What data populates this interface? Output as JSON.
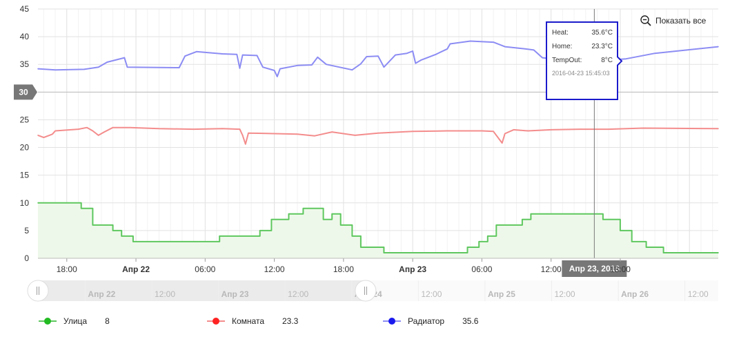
{
  "reset_button": {
    "label": "Показать все",
    "icon": "zoom-out-icon"
  },
  "chart_data": {
    "type": "line",
    "title": "",
    "xlabel": "",
    "ylabel": "",
    "ylim": [
      0,
      45
    ],
    "yticks": [
      0,
      5,
      10,
      15,
      20,
      25,
      30,
      35,
      40,
      45
    ],
    "xlim": [
      "2016-04-21 15:30",
      "2016-04-24 02:30"
    ],
    "xticks": [
      {
        "t": "2016-04-21 18:00",
        "label": "18:00",
        "bold": false
      },
      {
        "t": "2016-04-22 00:00",
        "label": "Апр 22",
        "bold": true
      },
      {
        "t": "2016-04-22 06:00",
        "label": "06:00",
        "bold": false
      },
      {
        "t": "2016-04-22 12:00",
        "label": "12:00",
        "bold": false
      },
      {
        "t": "2016-04-22 18:00",
        "label": "18:00",
        "bold": false
      },
      {
        "t": "2016-04-23 00:00",
        "label": "Апр 23",
        "bold": true
      },
      {
        "t": "2016-04-23 06:00",
        "label": "06:00",
        "bold": false
      },
      {
        "t": "2016-04-23 12:00",
        "label": "12:00",
        "bold": false
      },
      {
        "t": "2016-04-23 18:00",
        "label": "18:00",
        "bold": false
      }
    ],
    "grid": true,
    "legend_position": "bottom",
    "crosshair": {
      "x": "2016-04-23 15:45",
      "x_label": "Апр 23, 2016",
      "y": 30,
      "y_label": "30"
    },
    "tooltip": {
      "rows": [
        {
          "label": "Heat:",
          "value": "35.6°C"
        },
        {
          "label": "Home:",
          "value": "23.3°C"
        },
        {
          "label": "TempOut:",
          "value": "8°C"
        }
      ],
      "date": "2016-04-23 15:45:03",
      "border_color": "#1a1acc"
    },
    "series": [
      {
        "name": "Улица",
        "legend_value": "8",
        "color": "#5ec75e",
        "legend_color": "#22bb22",
        "fill": "#eef8ea",
        "step": true,
        "points": [
          [
            "2016-04-21 15:30",
            10
          ],
          [
            "2016-04-21 19:15",
            9
          ],
          [
            "2016-04-21 20:15",
            6
          ],
          [
            "2016-04-21 22:00",
            5
          ],
          [
            "2016-04-21 22:45",
            4
          ],
          [
            "2016-04-21 23:45",
            3
          ],
          [
            "2016-04-22 07:15",
            4
          ],
          [
            "2016-04-22 10:45",
            5
          ],
          [
            "2016-04-22 11:45",
            7
          ],
          [
            "2016-04-22 13:15",
            8
          ],
          [
            "2016-04-22 14:30",
            9
          ],
          [
            "2016-04-22 16:15",
            7
          ],
          [
            "2016-04-22 17:00",
            8
          ],
          [
            "2016-04-22 17:45",
            6
          ],
          [
            "2016-04-22 18:45",
            4
          ],
          [
            "2016-04-22 19:30",
            2
          ],
          [
            "2016-04-22 21:30",
            1
          ],
          [
            "2016-04-23 04:45",
            2
          ],
          [
            "2016-04-23 05:45",
            3
          ],
          [
            "2016-04-23 06:30",
            4
          ],
          [
            "2016-04-23 07:15",
            6
          ],
          [
            "2016-04-23 09:30",
            7
          ],
          [
            "2016-04-23 10:15",
            8
          ],
          [
            "2016-04-23 16:30",
            7
          ],
          [
            "2016-04-23 18:00",
            5
          ],
          [
            "2016-04-23 19:00",
            3
          ],
          [
            "2016-04-23 20:15",
            2
          ],
          [
            "2016-04-23 21:45",
            1
          ],
          [
            "2016-04-24 02:30",
            1
          ]
        ]
      },
      {
        "name": "Комната",
        "legend_value": "23.3",
        "color": "#f48c8c",
        "legend_color": "#ff2222",
        "step": false,
        "points": [
          [
            "2016-04-21 15:30",
            22.2
          ],
          [
            "2016-04-21 16:00",
            21.8
          ],
          [
            "2016-04-21 16:45",
            22.4
          ],
          [
            "2016-04-21 17:00",
            23.0
          ],
          [
            "2016-04-21 19:00",
            23.3
          ],
          [
            "2016-04-21 19:45",
            23.6
          ],
          [
            "2016-04-21 20:15",
            23.0
          ],
          [
            "2016-04-21 20:45",
            22.2
          ],
          [
            "2016-04-21 21:15",
            22.8
          ],
          [
            "2016-04-21 22:00",
            23.6
          ],
          [
            "2016-04-21 23:30",
            23.6
          ],
          [
            "2016-04-22 02:00",
            23.4
          ],
          [
            "2016-04-22 05:00",
            23.3
          ],
          [
            "2016-04-22 07:30",
            23.4
          ],
          [
            "2016-04-22 09:00",
            23.3
          ],
          [
            "2016-04-22 09:15",
            22.2
          ],
          [
            "2016-04-22 09:30",
            20.6
          ],
          [
            "2016-04-22 09:45",
            22.6
          ],
          [
            "2016-04-22 12:00",
            22.5
          ],
          [
            "2016-04-22 14:00",
            22.4
          ],
          [
            "2016-04-22 15:30",
            22.1
          ],
          [
            "2016-04-22 17:00",
            22.8
          ],
          [
            "2016-04-22 19:00",
            22.2
          ],
          [
            "2016-04-22 21:00",
            22.6
          ],
          [
            "2016-04-23 00:00",
            22.9
          ],
          [
            "2016-04-23 03:00",
            23.0
          ],
          [
            "2016-04-23 06:00",
            23.0
          ],
          [
            "2016-04-23 07:00",
            22.9
          ],
          [
            "2016-04-23 07:30",
            21.5
          ],
          [
            "2016-04-23 07:45",
            20.8
          ],
          [
            "2016-04-23 08:00",
            22.5
          ],
          [
            "2016-04-23 08:45",
            23.2
          ],
          [
            "2016-04-23 10:00",
            23.0
          ],
          [
            "2016-04-23 12:00",
            23.2
          ],
          [
            "2016-04-23 14:30",
            23.3
          ],
          [
            "2016-04-23 17:00",
            23.3
          ],
          [
            "2016-04-23 20:00",
            23.5
          ],
          [
            "2016-04-24 02:30",
            23.4
          ]
        ]
      },
      {
        "name": "Радиатор",
        "legend_value": "35.6",
        "color": "#8c8cf4",
        "legend_color": "#1a1aee",
        "step": false,
        "points": [
          [
            "2016-04-21 15:30",
            34.2
          ],
          [
            "2016-04-21 17:00",
            34.0
          ],
          [
            "2016-04-21 19:30",
            34.1
          ],
          [
            "2016-04-21 20:45",
            34.5
          ],
          [
            "2016-04-21 21:30",
            35.4
          ],
          [
            "2016-04-21 23:00",
            36.2
          ],
          [
            "2016-04-21 23:15",
            34.5
          ],
          [
            "2016-04-22 03:45",
            34.4
          ],
          [
            "2016-04-22 04:15",
            36.5
          ],
          [
            "2016-04-22 05:15",
            37.3
          ],
          [
            "2016-04-22 07:30",
            36.9
          ],
          [
            "2016-04-22 08:45",
            36.8
          ],
          [
            "2016-04-22 09:00",
            34.3
          ],
          [
            "2016-04-22 09:15",
            36.7
          ],
          [
            "2016-04-22 10:30",
            36.6
          ],
          [
            "2016-04-22 11:00",
            34.5
          ],
          [
            "2016-04-22 12:00",
            33.9
          ],
          [
            "2016-04-22 12:15",
            32.8
          ],
          [
            "2016-04-22 12:30",
            34.2
          ],
          [
            "2016-04-22 14:00",
            34.8
          ],
          [
            "2016-04-22 15:15",
            34.9
          ],
          [
            "2016-04-22 15:45",
            36.3
          ],
          [
            "2016-04-22 16:30",
            35.0
          ],
          [
            "2016-04-22 18:45",
            34.0
          ],
          [
            "2016-04-22 19:30",
            35.1
          ],
          [
            "2016-04-22 20:00",
            36.4
          ],
          [
            "2016-04-22 21:00",
            36.5
          ],
          [
            "2016-04-22 21:30",
            34.5
          ],
          [
            "2016-04-22 22:30",
            36.7
          ],
          [
            "2016-04-22 23:30",
            37.0
          ],
          [
            "2016-04-23 00:00",
            37.4
          ],
          [
            "2016-04-23 00:15",
            35.2
          ],
          [
            "2016-04-23 00:45",
            35.8
          ],
          [
            "2016-04-23 02:00",
            36.8
          ],
          [
            "2016-04-23 03:00",
            37.8
          ],
          [
            "2016-04-23 03:15",
            38.7
          ],
          [
            "2016-04-23 05:00",
            39.2
          ],
          [
            "2016-04-23 07:00",
            39.0
          ],
          [
            "2016-04-23 08:00",
            38.2
          ],
          [
            "2016-04-23 09:45",
            37.8
          ],
          [
            "2016-04-23 10:30",
            37.6
          ],
          [
            "2016-04-23 11:15",
            36.2
          ],
          [
            "2016-04-23 12:30",
            35.9
          ],
          [
            "2016-04-23 15:45",
            35.6
          ],
          [
            "2016-04-23 18:30",
            36.0
          ],
          [
            "2016-04-23 21:00",
            37.0
          ],
          [
            "2016-04-24 02:30",
            38.2
          ]
        ]
      }
    ],
    "navigator": {
      "labels": [
        {
          "t": "2016-04-22 00:00",
          "label": "Апр 22",
          "bold": true
        },
        {
          "t": "2016-04-22 12:00",
          "label": "12:00",
          "bold": false
        },
        {
          "t": "2016-04-23 00:00",
          "label": "Апр 23",
          "bold": true
        },
        {
          "t": "2016-04-23 12:00",
          "label": "12:00",
          "bold": false
        },
        {
          "t": "2016-04-24 00:00",
          "label": "Апр 24",
          "bold": true
        },
        {
          "t": "2016-04-24 12:00",
          "label": "12:00",
          "bold": false
        },
        {
          "t": "2016-04-25 00:00",
          "label": "Апр 25",
          "bold": true
        },
        {
          "t": "2016-04-25 12:00",
          "label": "12:00",
          "bold": false
        },
        {
          "t": "2016-04-26 00:00",
          "label": "Апр 26",
          "bold": true
        },
        {
          "t": "2016-04-26 12:00",
          "label": "12:00",
          "bold": false
        }
      ]
    }
  }
}
